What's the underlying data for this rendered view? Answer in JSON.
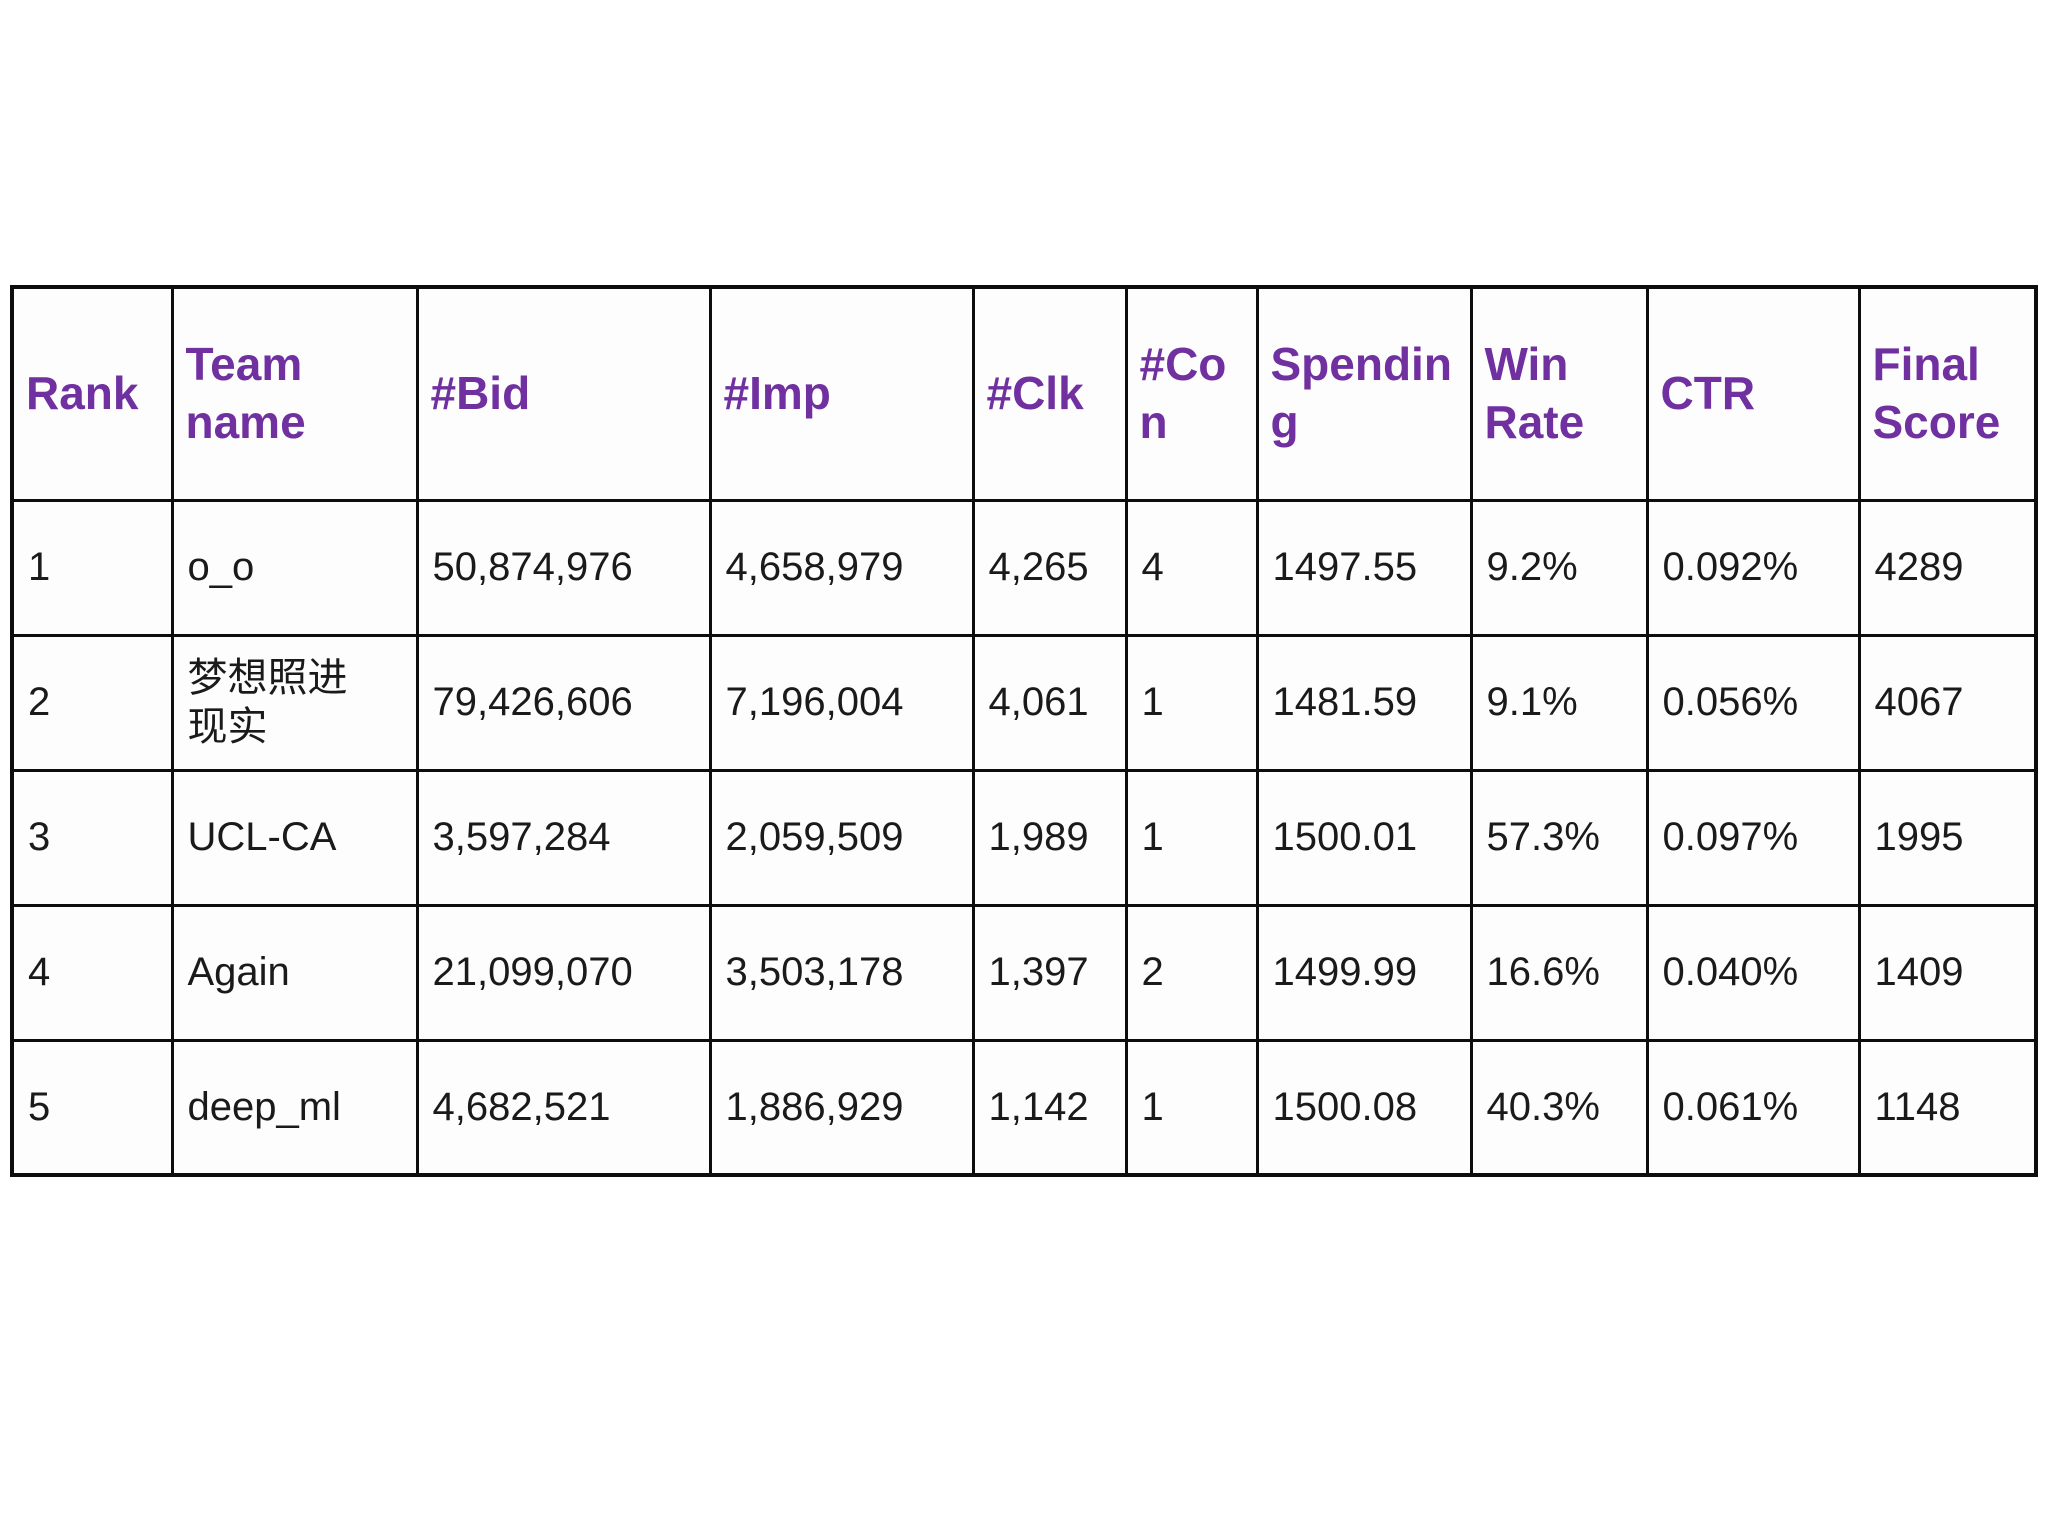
{
  "table": {
    "header_color": "#7030A0",
    "border_color": "#0d0d0d",
    "columns": [
      {
        "key": "rank",
        "label": "Rank"
      },
      {
        "key": "team_name",
        "label": "Team name"
      },
      {
        "key": "bid",
        "label": "#Bid"
      },
      {
        "key": "imp",
        "label": "#Imp"
      },
      {
        "key": "clk",
        "label": "#Clk"
      },
      {
        "key": "con",
        "label": "#Con"
      },
      {
        "key": "spending",
        "label": "Spending"
      },
      {
        "key": "win_rate",
        "label": "Win Rate"
      },
      {
        "key": "ctr",
        "label": "CTR"
      },
      {
        "key": "final_score",
        "label": "Final Score"
      }
    ],
    "rows": [
      [
        "1",
        "o_o",
        "50,874,976",
        "4,658,979",
        "4,265",
        "4",
        "1497.55",
        "9.2%",
        "0.092%",
        "4289"
      ],
      [
        "2",
        "梦想照进现实",
        "79,426,606",
        "7,196,004",
        "4,061",
        "1",
        "1481.59",
        "9.1%",
        "0.056%",
        "4067"
      ],
      [
        "3",
        "UCL-CA",
        "3,597,284",
        "2,059,509",
        "1,989",
        "1",
        "1500.01",
        "57.3%",
        "0.097%",
        "1995"
      ],
      [
        "4",
        "Again",
        "21,099,070",
        "3,503,178",
        "1,397",
        "2",
        "1499.99",
        "16.6%",
        "0.040%",
        "1409"
      ],
      [
        "5",
        "deep_ml",
        "4,682,521",
        "1,886,929",
        "1,142",
        "1",
        "1500.08",
        "40.3%",
        "0.061%",
        "1148"
      ]
    ]
  },
  "chart_data": {
    "type": "table",
    "title": "",
    "columns": [
      "Rank",
      "Team name",
      "#Bid",
      "#Imp",
      "#Clk",
      "#Con",
      "Spending",
      "Win Rate",
      "CTR",
      "Final Score"
    ],
    "rows": [
      [
        "1",
        "o_o",
        "50,874,976",
        "4,658,979",
        "4,265",
        "4",
        "1497.55",
        "9.2%",
        "0.092%",
        "4289"
      ],
      [
        "2",
        "梦想照进现实",
        "79,426,606",
        "7,196,004",
        "4,061",
        "1",
        "1481.59",
        "9.1%",
        "0.056%",
        "4067"
      ],
      [
        "3",
        "UCL-CA",
        "3,597,284",
        "2,059,509",
        "1,989",
        "1",
        "1500.01",
        "57.3%",
        "0.097%",
        "1995"
      ],
      [
        "4",
        "Again",
        "21,099,070",
        "3,503,178",
        "1,397",
        "2",
        "1499.99",
        "16.6%",
        "0.040%",
        "1409"
      ],
      [
        "5",
        "deep_ml",
        "4,682,521",
        "1,886,929",
        "1,142",
        "1",
        "1500.08",
        "40.3%",
        "0.061%",
        "1148"
      ]
    ]
  }
}
